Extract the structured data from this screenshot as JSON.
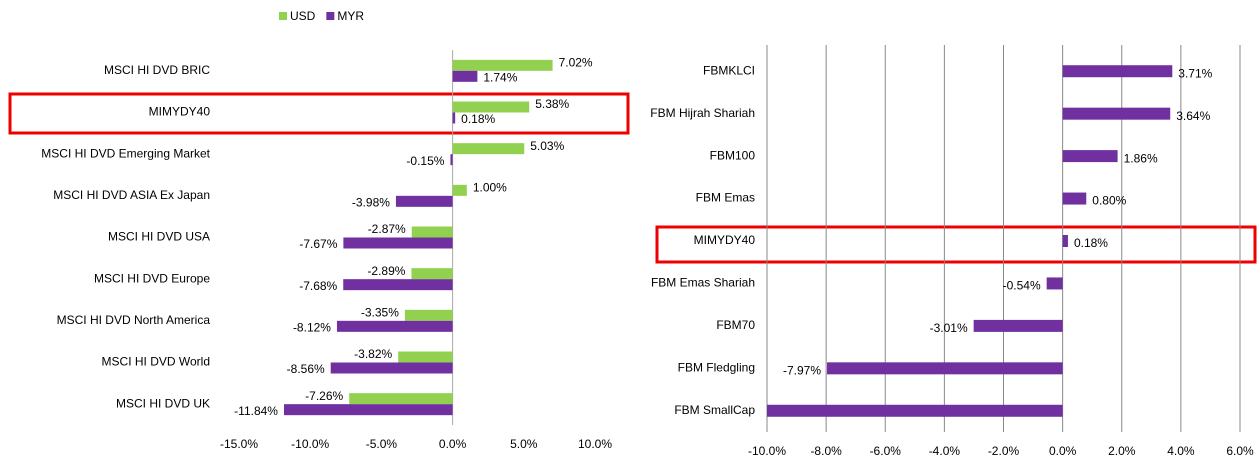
{
  "chart_data": [
    {
      "type": "bar",
      "orientation": "horizontal",
      "categories": [
        "MSCI HI DVD BRIC",
        "MIMYDY40",
        "MSCI HI DVD Emerging Market",
        "MSCI HI DVD ASIA Ex Japan",
        "MSCI HI DVD USA",
        "MSCI HI DVD Europe",
        "MSCI HI DVD North America",
        "MSCI HI DVD World",
        "MSCI HI DVD UK"
      ],
      "series": [
        {
          "name": "USD",
          "color": "#92d050",
          "values": [
            7.02,
            5.38,
            5.03,
            1.0,
            -2.87,
            -2.89,
            -3.35,
            -3.82,
            -7.26
          ],
          "value_labels": [
            "7.02%",
            "5.38%",
            "5.03%",
            "1.00%",
            "-2.87%",
            "-2.89%",
            "-3.35%",
            "-3.82%",
            "-7.26%"
          ]
        },
        {
          "name": "MYR",
          "color": "#7030a0",
          "values": [
            1.74,
            0.18,
            -0.15,
            -3.98,
            -7.67,
            -7.68,
            -8.12,
            -8.56,
            -11.84
          ],
          "value_labels": [
            "1.74%",
            "0.18%",
            "-0.15%",
            "-3.98%",
            "-7.67%",
            "-7.68%",
            "-8.12%",
            "-8.56%",
            "-11.84%"
          ]
        }
      ],
      "xlim": [
        -15,
        10
      ],
      "xticks": [
        {
          "value": -15,
          "label": "-15.0%"
        },
        {
          "value": -10,
          "label": "-10.0%"
        },
        {
          "value": -5,
          "label": "-5.0%"
        },
        {
          "value": 0,
          "label": "0.0%"
        },
        {
          "value": 5,
          "label": "5.0%"
        },
        {
          "value": 10,
          "label": "10.0%"
        }
      ],
      "grid": false,
      "legend": "top"
    },
    {
      "type": "bar",
      "orientation": "horizontal",
      "categories": [
        "FBMKLCI",
        "FBM Hijrah Shariah",
        "FBM100",
        "FBM Emas",
        "MIMYDY40",
        "FBM Emas Shariah",
        "FBM70",
        "FBM Fledgling",
        "FBM SmallCap"
      ],
      "series": [
        {
          "color": "#7030a0",
          "values": [
            3.71,
            3.64,
            1.86,
            0.8,
            0.18,
            -0.54,
            -3.01,
            -7.97,
            -10.0
          ],
          "value_labels": [
            "3.71%",
            "3.64%",
            "1.86%",
            "0.80%",
            "0.18%",
            "-0.54%",
            "-3.01%",
            "-7.97%",
            null
          ]
        }
      ],
      "xlim": [
        -10,
        6
      ],
      "xticks": [
        {
          "value": -10,
          "label": "-10.0%"
        },
        {
          "value": -8,
          "label": "-8.0%"
        },
        {
          "value": -6,
          "label": "-6.0%"
        },
        {
          "value": -4,
          "label": "-4.0%"
        },
        {
          "value": -2,
          "label": "-2.0%"
        },
        {
          "value": 0,
          "label": "0.0%"
        },
        {
          "value": 2,
          "label": "2.0%"
        },
        {
          "value": 4,
          "label": "4.0%"
        },
        {
          "value": 6,
          "label": "6.0%"
        }
      ],
      "grid": true
    }
  ]
}
